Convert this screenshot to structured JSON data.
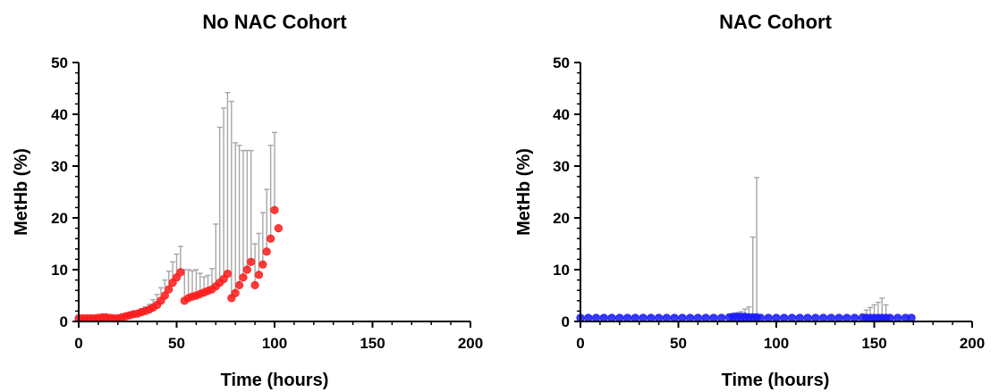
{
  "chart_data": [
    {
      "type": "scatter",
      "title": "No NAC Cohort",
      "xlabel": "Time (hours)",
      "ylabel": "MetHb (%)",
      "xlim": [
        0,
        200
      ],
      "ylim": [
        0,
        50
      ],
      "xticks": [
        0,
        50,
        100,
        150,
        200
      ],
      "yticks": [
        0,
        10,
        20,
        30,
        40,
        50
      ],
      "x_tick_labels": [
        "0",
        "50",
        "100",
        "150",
        "200"
      ],
      "y_tick_labels": [
        "0",
        "10",
        "20",
        "30",
        "40",
        "50"
      ],
      "marker_color": "#ff1a1a",
      "errorbar_color": "#a6a6a6",
      "marker_style": "filled-circle",
      "points": [
        {
          "x": 0,
          "y": 0.6,
          "err": 0.2
        },
        {
          "x": 2,
          "y": 0.6,
          "err": 0.2
        },
        {
          "x": 4,
          "y": 0.6,
          "err": 0.2
        },
        {
          "x": 6,
          "y": 0.6,
          "err": 0.2
        },
        {
          "x": 8,
          "y": 0.6,
          "err": 0.2
        },
        {
          "x": 10,
          "y": 0.7,
          "err": 0.2
        },
        {
          "x": 12,
          "y": 0.8,
          "err": 0.2
        },
        {
          "x": 14,
          "y": 0.8,
          "err": 0.2
        },
        {
          "x": 16,
          "y": 0.7,
          "err": 0.2
        },
        {
          "x": 18,
          "y": 0.6,
          "err": 0.2
        },
        {
          "x": 20,
          "y": 0.6,
          "err": 0.3
        },
        {
          "x": 22,
          "y": 0.8,
          "err": 0.3
        },
        {
          "x": 24,
          "y": 1.0,
          "err": 0.3
        },
        {
          "x": 26,
          "y": 1.2,
          "err": 0.4
        },
        {
          "x": 28,
          "y": 1.4,
          "err": 0.4
        },
        {
          "x": 30,
          "y": 1.5,
          "err": 0.5
        },
        {
          "x": 32,
          "y": 1.8,
          "err": 0.6
        },
        {
          "x": 34,
          "y": 2.0,
          "err": 0.8
        },
        {
          "x": 36,
          "y": 2.3,
          "err": 1.0
        },
        {
          "x": 38,
          "y": 2.7,
          "err": 1.5
        },
        {
          "x": 40,
          "y": 3.2,
          "err": 2.0
        },
        {
          "x": 42,
          "y": 4.0,
          "err": 2.5
        },
        {
          "x": 44,
          "y": 5.0,
          "err": 3.0
        },
        {
          "x": 46,
          "y": 6.2,
          "err": 3.5
        },
        {
          "x": 48,
          "y": 7.5,
          "err": 4.0
        },
        {
          "x": 50,
          "y": 8.5,
          "err": 4.5
        },
        {
          "x": 52,
          "y": 9.5,
          "err": 5.0
        },
        {
          "x": 54,
          "y": 4.0,
          "err": 6.0
        },
        {
          "x": 56,
          "y": 4.5,
          "err": 5.5
        },
        {
          "x": 58,
          "y": 4.8,
          "err": 5.0
        },
        {
          "x": 60,
          "y": 5.0,
          "err": 5.0
        },
        {
          "x": 62,
          "y": 5.3,
          "err": 4.0
        },
        {
          "x": 64,
          "y": 5.6,
          "err": 3.0
        },
        {
          "x": 66,
          "y": 5.9,
          "err": 3.0
        },
        {
          "x": 68,
          "y": 6.2,
          "err": 4.0
        },
        {
          "x": 70,
          "y": 6.8,
          "err": 12.0
        },
        {
          "x": 72,
          "y": 7.5,
          "err": 30.0
        },
        {
          "x": 74,
          "y": 8.2,
          "err": 33.0
        },
        {
          "x": 76,
          "y": 9.2,
          "err": 35.0
        },
        {
          "x": 78,
          "y": 4.5,
          "err": 38.0
        },
        {
          "x": 80,
          "y": 5.5,
          "err": 29.0
        },
        {
          "x": 82,
          "y": 7.0,
          "err": 27.0
        },
        {
          "x": 84,
          "y": 8.5,
          "err": 24.5
        },
        {
          "x": 86,
          "y": 10.0,
          "err": 23.0
        },
        {
          "x": 88,
          "y": 11.5,
          "err": 21.5
        },
        {
          "x": 90,
          "y": 7.0,
          "err": 8.0
        },
        {
          "x": 92,
          "y": 9.0,
          "err": 8.0
        },
        {
          "x": 94,
          "y": 11.0,
          "err": 10.0
        },
        {
          "x": 96,
          "y": 13.5,
          "err": 12.0
        },
        {
          "x": 98,
          "y": 16.0,
          "err": 18.0
        },
        {
          "x": 100,
          "y": 21.5,
          "err": 15.0
        },
        {
          "x": 102,
          "y": 18.0,
          "err": 0
        }
      ]
    },
    {
      "type": "scatter",
      "title": "NAC Cohort",
      "xlabel": "Time (hours)",
      "ylabel": "MetHb (%)",
      "xlim": [
        0,
        200
      ],
      "ylim": [
        0,
        50
      ],
      "xticks": [
        0,
        50,
        100,
        150,
        200
      ],
      "yticks": [
        0,
        10,
        20,
        30,
        40,
        50
      ],
      "x_tick_labels": [
        "0",
        "50",
        "100",
        "150",
        "200"
      ],
      "y_tick_labels": [
        "0",
        "10",
        "20",
        "30",
        "40",
        "50"
      ],
      "marker_color": "#1a1aff",
      "errorbar_color": "#a6a6a6",
      "marker_style": "filled-circle",
      "points": [
        {
          "x": 0,
          "y": 0.7,
          "err": 0.3
        },
        {
          "x": 4,
          "y": 0.7,
          "err": 0.3
        },
        {
          "x": 8,
          "y": 0.7,
          "err": 0.3
        },
        {
          "x": 12,
          "y": 0.7,
          "err": 0.3
        },
        {
          "x": 16,
          "y": 0.7,
          "err": 0.3
        },
        {
          "x": 20,
          "y": 0.7,
          "err": 0.3
        },
        {
          "x": 24,
          "y": 0.7,
          "err": 0.3
        },
        {
          "x": 28,
          "y": 0.7,
          "err": 0.3
        },
        {
          "x": 32,
          "y": 0.7,
          "err": 0.3
        },
        {
          "x": 36,
          "y": 0.7,
          "err": 0.3
        },
        {
          "x": 40,
          "y": 0.7,
          "err": 0.3
        },
        {
          "x": 44,
          "y": 0.7,
          "err": 0.3
        },
        {
          "x": 48,
          "y": 0.7,
          "err": 0.3
        },
        {
          "x": 52,
          "y": 0.7,
          "err": 0.3
        },
        {
          "x": 56,
          "y": 0.7,
          "err": 0.3
        },
        {
          "x": 60,
          "y": 0.7,
          "err": 0.3
        },
        {
          "x": 64,
          "y": 0.7,
          "err": 0.3
        },
        {
          "x": 68,
          "y": 0.7,
          "err": 0.3
        },
        {
          "x": 72,
          "y": 0.7,
          "err": 0.3
        },
        {
          "x": 76,
          "y": 0.8,
          "err": 0.4
        },
        {
          "x": 78,
          "y": 0.9,
          "err": 0.5
        },
        {
          "x": 80,
          "y": 0.9,
          "err": 0.8
        },
        {
          "x": 82,
          "y": 0.9,
          "err": 1.0
        },
        {
          "x": 84,
          "y": 0.9,
          "err": 1.5
        },
        {
          "x": 86,
          "y": 0.8,
          "err": 2.0
        },
        {
          "x": 88,
          "y": 0.8,
          "err": 15.5
        },
        {
          "x": 90,
          "y": 0.8,
          "err": 27.0
        },
        {
          "x": 92,
          "y": 0.7,
          "err": 0.5
        },
        {
          "x": 96,
          "y": 0.7,
          "err": 0.3
        },
        {
          "x": 100,
          "y": 0.7,
          "err": 0.3
        },
        {
          "x": 104,
          "y": 0.7,
          "err": 0.3
        },
        {
          "x": 108,
          "y": 0.7,
          "err": 0.3
        },
        {
          "x": 112,
          "y": 0.7,
          "err": 0.3
        },
        {
          "x": 116,
          "y": 0.7,
          "err": 0.3
        },
        {
          "x": 120,
          "y": 0.7,
          "err": 0.3
        },
        {
          "x": 124,
          "y": 0.7,
          "err": 0.3
        },
        {
          "x": 128,
          "y": 0.7,
          "err": 0.3
        },
        {
          "x": 132,
          "y": 0.7,
          "err": 0.3
        },
        {
          "x": 136,
          "y": 0.7,
          "err": 0.3
        },
        {
          "x": 140,
          "y": 0.7,
          "err": 0.3
        },
        {
          "x": 144,
          "y": 0.7,
          "err": 0.8
        },
        {
          "x": 146,
          "y": 0.7,
          "err": 1.5
        },
        {
          "x": 148,
          "y": 0.7,
          "err": 2.0
        },
        {
          "x": 150,
          "y": 0.7,
          "err": 2.5
        },
        {
          "x": 152,
          "y": 0.7,
          "err": 3.0
        },
        {
          "x": 154,
          "y": 0.7,
          "err": 3.8
        },
        {
          "x": 156,
          "y": 0.7,
          "err": 2.5
        },
        {
          "x": 158,
          "y": 0.7,
          "err": 0.3
        },
        {
          "x": 162,
          "y": 0.7,
          "err": 0.2
        },
        {
          "x": 166,
          "y": 0.7,
          "err": 0.2
        },
        {
          "x": 169,
          "y": 0.7,
          "err": 0.2
        }
      ]
    }
  ]
}
